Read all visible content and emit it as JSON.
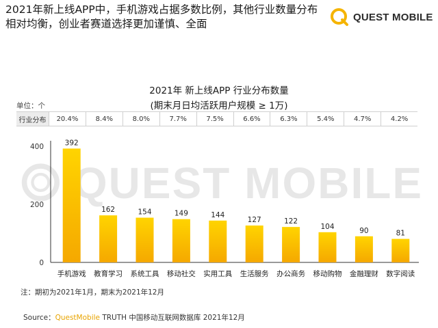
{
  "headline": "2021年新上线APP中，手机游戏占据多数比例，其他行业数量分布相对均衡，创业者赛道选择更加谨慎、全面",
  "logo": {
    "text": "QUEST MOBILE",
    "icon": "quest-mobile-logo-icon",
    "color": "#f5b400"
  },
  "watermark": {
    "text": "QUEST MOBILE",
    "icon": "quest-mobile-logo-icon"
  },
  "unit_label": "单位：个",
  "share_table": {
    "header": "行业分布",
    "values": [
      "20.4%",
      "8.4%",
      "8.0%",
      "7.7%",
      "7.5%",
      "6.6%",
      "6.3%",
      "5.4%",
      "4.7%",
      "4.2%"
    ]
  },
  "chart_data": {
    "type": "bar",
    "title": "2021年 新上线APP 行业分布数量",
    "subtitle": "(期末月日均活跃用户规模 ≥ 1万)",
    "categories": [
      "手机游戏",
      "教育学习",
      "系统工具",
      "移动社交",
      "实用工具",
      "生活服务",
      "办公商务",
      "移动购物",
      "金融理财",
      "数字阅读"
    ],
    "values": [
      392,
      162,
      154,
      149,
      144,
      127,
      122,
      104,
      90,
      81
    ],
    "yticks": [
      0,
      200,
      400
    ],
    "ylim": [
      0,
      400
    ],
    "grid": false,
    "legend": "none",
    "bar_color_top": "#ffd400",
    "bar_color_bottom": "#f5a800"
  },
  "note": "注：期初为2021年1月，期末为2021年12月",
  "source": {
    "prefix": "Source：",
    "brand": "QuestMobile",
    "rest": " TRUTH 中国移动互联网数据库 2021年12月"
  }
}
